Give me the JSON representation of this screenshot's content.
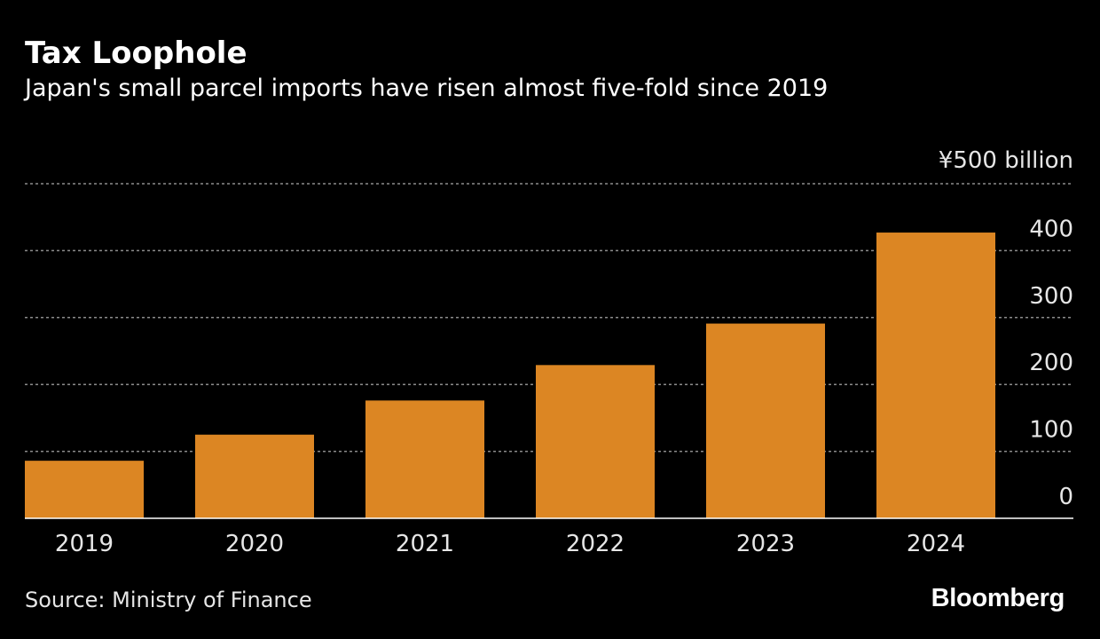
{
  "header": {
    "title": "Tax Loophole",
    "subtitle": "Japan's small parcel imports have risen almost five-fold since 2019"
  },
  "footer": {
    "source": "Source: Ministry of Finance",
    "brand": "Bloomberg"
  },
  "colors": {
    "background": "#000000",
    "bar": "#dc8623",
    "grid": "#8c8c8c",
    "text": "#e6e6e6"
  },
  "chart_data": {
    "type": "bar",
    "title": "Tax Loophole",
    "subtitle": "Japan's small parcel imports have risen almost five-fold since 2019",
    "categories": [
      "2019",
      "2020",
      "2021",
      "2022",
      "2023",
      "2024"
    ],
    "values": [
      86,
      125,
      176,
      229,
      291,
      427
    ],
    "unit_label": "¥500 billion",
    "y_ticks": [
      {
        "value": 0,
        "label": "0"
      },
      {
        "value": 100,
        "label": "100"
      },
      {
        "value": 200,
        "label": "200"
      },
      {
        "value": 300,
        "label": "300"
      },
      {
        "value": 400,
        "label": "400"
      },
      {
        "value": 500,
        "label": "¥500 billion"
      }
    ],
    "ylim": [
      0,
      500
    ],
    "xlabel": "",
    "ylabel": "",
    "grid": true,
    "axis_position": "right"
  }
}
